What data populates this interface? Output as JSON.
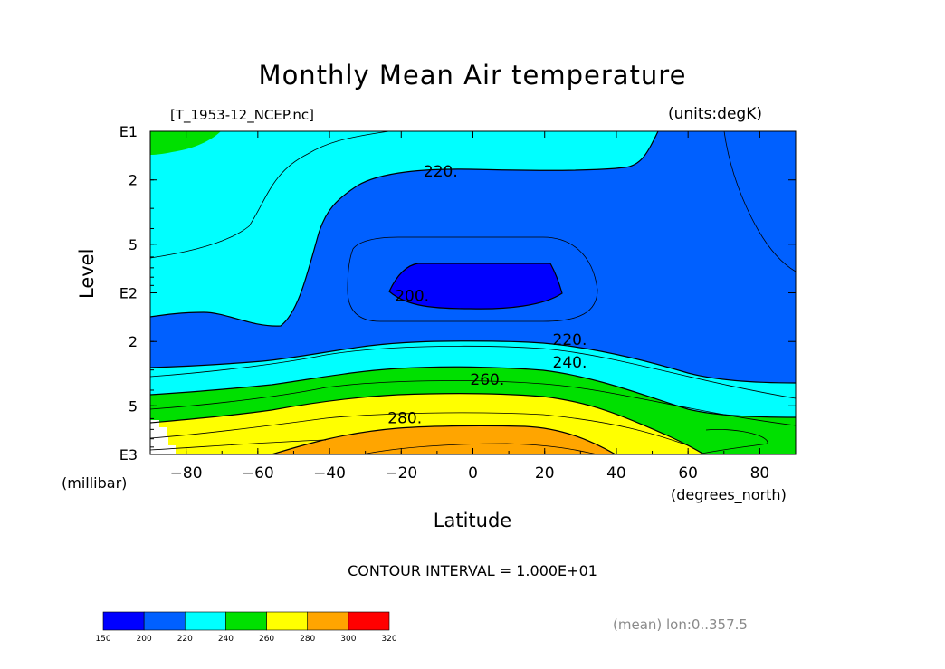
{
  "chart_data": {
    "type": "contour",
    "title": "Monthly Mean Air temperature",
    "file_label": "[T_1953-12_NCEP.nc]",
    "units_label": "(units:degK)",
    "xlabel": "Latitude",
    "xlabel_units": "(degrees_north)",
    "ylabel": "Level",
    "ylabel_units": "(millibar)",
    "xlim": [
      -90,
      90
    ],
    "x_ticks": [
      "-80",
      "-60",
      "-40",
      "-20",
      "0",
      "20",
      "40",
      "60",
      "80"
    ],
    "y_scale": "log",
    "ylim_mb": [
      1000,
      10
    ],
    "y_ticks": [
      {
        "mb": 10,
        "label": "E1"
      },
      {
        "mb": 20,
        "label": "2"
      },
      {
        "mb": 50,
        "label": "5"
      },
      {
        "mb": 100,
        "label": "E2"
      },
      {
        "mb": 200,
        "label": "2"
      },
      {
        "mb": 500,
        "label": "5"
      },
      {
        "mb": 1000,
        "label": "E3"
      }
    ],
    "contour_interval_text": "CONTOUR INTERVAL = 1.000E+01",
    "contour_labels": [
      {
        "text": "220.",
        "lat": -9,
        "mb": 19
      },
      {
        "text": "200.",
        "lat": -17,
        "mb": 112
      },
      {
        "text": "220.",
        "lat": 27,
        "mb": 210
      },
      {
        "text": "240.",
        "lat": 27,
        "mb": 290
      },
      {
        "text": "260.",
        "lat": 4,
        "mb": 370
      },
      {
        "text": "280.",
        "lat": -19,
        "mb": 640
      }
    ],
    "colorbar": {
      "levels": [
        "150",
        "200",
        "220",
        "240",
        "260",
        "280",
        "300",
        "320"
      ],
      "colors": [
        "#0000ff",
        "#0060ff",
        "#00ffff",
        "#00e000",
        "#ffff00",
        "#ffa500",
        "#ff0000"
      ]
    },
    "fills": {
      "white": "#ffffff",
      "blue200_220": "#0060ff",
      "blue150_200": "#0000ff",
      "cyan220_240": "#00ffff",
      "green240_260": "#00e000",
      "yellow260_280": "#ffff00",
      "orange280_300": "#ffa500"
    },
    "footnote": "(mean) lon:0..357.5"
  }
}
